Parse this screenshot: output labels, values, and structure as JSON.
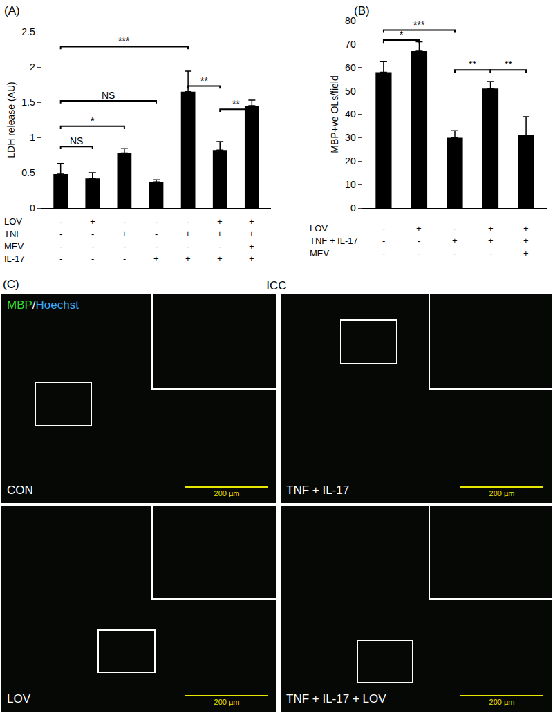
{
  "chart_data": [
    {
      "type": "bar",
      "title": "(A)",
      "categories": [
        null,
        null,
        null,
        null,
        null,
        null,
        null
      ],
      "values": [
        0.48,
        0.42,
        0.78,
        0.37,
        1.65,
        0.82,
        1.45
      ],
      "error": [
        0.15,
        0.08,
        0.06,
        0.03,
        0.29,
        0.12,
        0.08
      ],
      "color": "#000000",
      "y_label": "LDH release (AU)",
      "ylim": [
        0,
        2.5
      ],
      "yticks": [
        0,
        0.5,
        1,
        1.5,
        2,
        2.5
      ],
      "grid": false,
      "significance": [
        {
          "from": 0,
          "to": 4,
          "y": 2.29,
          "label": "***"
        },
        {
          "from": 0,
          "to": 3,
          "y": 1.52,
          "label": "NS"
        },
        {
          "from": 0,
          "to": 2,
          "y": 1.16,
          "label": "*"
        },
        {
          "from": 0,
          "to": 1,
          "y": 0.87,
          "label": "NS"
        },
        {
          "from": 4,
          "to": 5,
          "y": 1.73,
          "label": "**"
        },
        {
          "from": 5,
          "to": 6,
          "y": 1.4,
          "label": "**"
        }
      ],
      "treatment_table": [
        {
          "label": "LOV",
          "marks": [
            "-",
            "+",
            "-",
            "-",
            "-",
            "+",
            "+"
          ]
        },
        {
          "label": "TNF",
          "marks": [
            "-",
            "-",
            "+",
            "-",
            "+",
            "+",
            "+"
          ]
        },
        {
          "label": "MEV",
          "marks": [
            "-",
            "-",
            "-",
            "-",
            "-",
            "-",
            "+"
          ]
        },
        {
          "label": "IL-17",
          "marks": [
            "-",
            "-",
            "-",
            "+",
            "+",
            "+",
            "+"
          ]
        }
      ]
    },
    {
      "type": "bar",
      "title": "(B)",
      "categories": [
        null,
        null,
        null,
        null,
        null
      ],
      "values": [
        58,
        67,
        30,
        51,
        31
      ],
      "error": [
        4.5,
        4,
        3,
        3,
        8
      ],
      "color": "#000000",
      "y_label": "MBP+ve OLs/field",
      "ylim": [
        0,
        80
      ],
      "yticks": [
        0,
        10,
        20,
        30,
        40,
        50,
        60,
        70,
        80
      ],
      "grid": false,
      "significance": [
        {
          "from": 0,
          "to": 2,
          "y": 76,
          "label": "***"
        },
        {
          "from": 0,
          "to": 1,
          "y": 71.7,
          "label": "*"
        },
        {
          "from": 2,
          "to": 3,
          "y": 59,
          "label": "**"
        },
        {
          "from": 3,
          "to": 4,
          "y": 59,
          "label": "**"
        }
      ],
      "treatment_table": [
        {
          "label": "LOV",
          "marks": [
            "-",
            "+",
            "-",
            "+",
            "+"
          ]
        },
        {
          "label": "TNF + IL-17",
          "marks": [
            "-",
            "-",
            "+",
            "+",
            "+"
          ]
        },
        {
          "label": "MEV",
          "marks": [
            "-",
            "-",
            "-",
            "-",
            "+"
          ]
        }
      ]
    }
  ],
  "panel_c": {
    "label": "(C)",
    "title": "ICC",
    "stain": [
      {
        "text": "MBP",
        "color": "#33dd33"
      },
      {
        "text": "/",
        "color": "#ffffff"
      },
      {
        "text": "Hoechst",
        "color": "#3fa9f5"
      }
    ],
    "scale_bar": "200 µm",
    "panels": [
      {
        "label": "CON",
        "stain": true
      },
      {
        "label": "TNF + IL-17",
        "stain": false
      },
      {
        "label": "LOV",
        "stain": false
      },
      {
        "label": "TNF + IL-17 + LOV",
        "stain": false
      }
    ]
  }
}
